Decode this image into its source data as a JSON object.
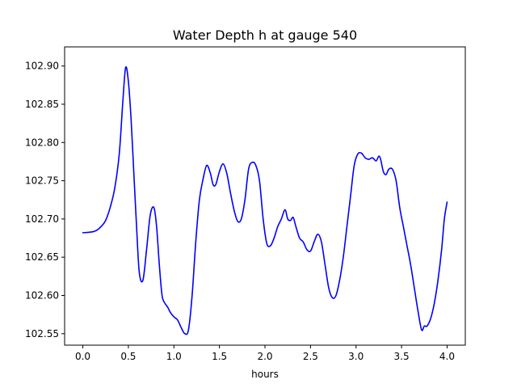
{
  "chart_data": {
    "type": "line",
    "title": "Water Depth h at gauge 540",
    "xlabel": "hours",
    "ylabel": "",
    "xlim": [
      -0.2,
      4.2
    ],
    "ylim": [
      102.535,
      102.925
    ],
    "x_ticks": [
      0.0,
      0.5,
      1.0,
      1.5,
      2.0,
      2.5,
      3.0,
      3.5,
      4.0
    ],
    "x_tick_labels": [
      "0.0",
      "0.5",
      "1.0",
      "1.5",
      "2.0",
      "2.5",
      "3.0",
      "3.5",
      "4.0"
    ],
    "y_ticks": [
      102.55,
      102.6,
      102.65,
      102.7,
      102.75,
      102.8,
      102.85,
      102.9
    ],
    "y_tick_labels": [
      "102.55",
      "102.60",
      "102.65",
      "102.70",
      "102.75",
      "102.80",
      "102.85",
      "102.90"
    ],
    "grid": false,
    "series": [
      {
        "color": "#0000ff",
        "x": [
          0.0,
          0.1,
          0.15,
          0.2,
          0.25,
          0.3,
          0.35,
          0.4,
          0.44,
          0.47,
          0.5,
          0.53,
          0.56,
          0.59,
          0.62,
          0.66,
          0.7,
          0.74,
          0.78,
          0.81,
          0.84,
          0.87,
          0.9,
          0.93,
          0.96,
          1.0,
          1.04,
          1.08,
          1.12,
          1.16,
          1.2,
          1.24,
          1.28,
          1.32,
          1.36,
          1.4,
          1.43,
          1.46,
          1.5,
          1.54,
          1.58,
          1.62,
          1.66,
          1.7,
          1.74,
          1.78,
          1.82,
          1.86,
          1.9,
          1.94,
          1.98,
          2.02,
          2.06,
          2.1,
          2.14,
          2.18,
          2.22,
          2.25,
          2.28,
          2.31,
          2.34,
          2.38,
          2.42,
          2.46,
          2.5,
          2.54,
          2.58,
          2.62,
          2.66,
          2.7,
          2.74,
          2.78,
          2.82,
          2.86,
          2.9,
          2.94,
          2.98,
          3.02,
          3.06,
          3.1,
          3.14,
          3.18,
          3.22,
          3.25,
          3.27,
          3.3,
          3.33,
          3.36,
          3.4,
          3.44,
          3.48,
          3.52,
          3.56,
          3.6,
          3.64,
          3.68,
          3.72,
          3.75,
          3.78,
          3.82,
          3.86,
          3.9,
          3.94,
          3.97,
          4.0
        ],
        "y": [
          102.682,
          102.683,
          102.685,
          102.69,
          102.698,
          102.715,
          102.74,
          102.785,
          102.855,
          102.898,
          102.88,
          102.83,
          102.76,
          102.69,
          102.63,
          102.62,
          102.66,
          102.705,
          102.715,
          102.69,
          102.64,
          102.6,
          102.59,
          102.585,
          102.578,
          102.572,
          102.568,
          102.558,
          102.55,
          102.555,
          102.6,
          102.67,
          102.725,
          102.752,
          102.77,
          102.76,
          102.745,
          102.745,
          102.762,
          102.772,
          102.76,
          102.735,
          102.712,
          102.697,
          102.7,
          102.725,
          102.765,
          102.774,
          102.77,
          102.75,
          102.7,
          102.668,
          102.665,
          102.675,
          102.69,
          102.7,
          102.712,
          102.7,
          102.698,
          102.702,
          102.69,
          102.675,
          102.67,
          102.66,
          102.658,
          102.67,
          102.68,
          102.67,
          102.64,
          102.61,
          102.597,
          102.6,
          102.62,
          102.65,
          102.69,
          102.73,
          102.77,
          102.785,
          102.786,
          102.78,
          102.778,
          102.78,
          102.776,
          102.782,
          102.778,
          102.762,
          102.758,
          102.765,
          102.765,
          102.75,
          102.715,
          102.69,
          102.665,
          102.64,
          102.61,
          102.58,
          102.555,
          102.56,
          102.56,
          102.57,
          102.59,
          102.62,
          102.66,
          102.7,
          102.722
        ]
      }
    ]
  }
}
